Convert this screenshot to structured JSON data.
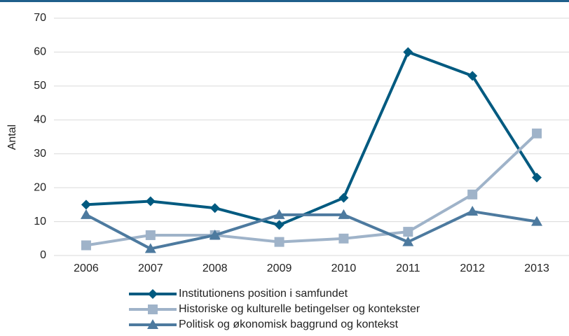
{
  "chart_data": {
    "type": "line",
    "ylabel": "Antal",
    "categories": [
      "2006",
      "2007",
      "2008",
      "2009",
      "2010",
      "2011",
      "2012",
      "2013"
    ],
    "series": [
      {
        "name": "Institutionens position i samfundet",
        "color": "#005a80",
        "marker": "diamond",
        "values": [
          15,
          16,
          14,
          9,
          17,
          60,
          53,
          23
        ]
      },
      {
        "name": "Historiske og kulturelle betingelser og kontekster",
        "color": "#9fb3c9",
        "marker": "square",
        "values": [
          3,
          6,
          6,
          4,
          5,
          7,
          18,
          36
        ]
      },
      {
        "name": "Politisk og økonomisk baggrund og kontekst",
        "color": "#4d7a9f",
        "marker": "triangle",
        "values": [
          12,
          2,
          6,
          12,
          12,
          4,
          13,
          10
        ]
      }
    ],
    "ylim": [
      0,
      70
    ],
    "yticks": [
      0,
      10,
      20,
      30,
      40,
      50,
      60,
      70
    ],
    "grid": true
  }
}
